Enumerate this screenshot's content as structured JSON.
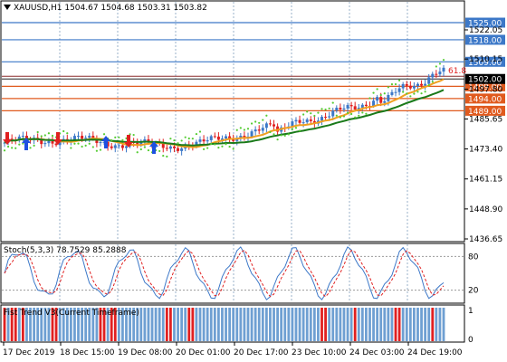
{
  "header": {
    "symbol_line": "XAUUSD,H1  1504.67 1504.68 1503.31 1503.82"
  },
  "price_axis": {
    "ticks": [
      "1522.05",
      "1510.15",
      "1497.80",
      "1485.65",
      "1473.40",
      "1461.15",
      "1448.90",
      "1436.65"
    ],
    "current_price": "1502.00",
    "current_price_color": "#000000"
  },
  "levels": [
    {
      "label": "1525.00",
      "price": 1525.0,
      "color": "#3c78c8"
    },
    {
      "label": "1518.00",
      "price": 1518.0,
      "color": "#3c78c8"
    },
    {
      "label": "1509.00",
      "price": 1509.0,
      "color": "#3c78c8"
    },
    {
      "label": "1499.00",
      "price": 1499.0,
      "color": "#e05a1e"
    },
    {
      "label": "1494.00",
      "price": 1494.0,
      "color": "#e05a1e"
    },
    {
      "label": "1489.00",
      "price": 1489.0,
      "color": "#e05a1e"
    }
  ],
  "fibo_label": "61.8",
  "time_axis": {
    "labels": [
      "17 Dec 2019",
      "18 Dec 15:00",
      "19 Dec 08:00",
      "20 Dec 01:00",
      "20 Dec 17:00",
      "23 Dec 10:00",
      "24 Dec 03:00",
      "24 Dec 19:00"
    ]
  },
  "stoch": {
    "title": "Stoch(5,3,3) 78.7529 85.2888",
    "levels": [
      "80",
      "20"
    ]
  },
  "fisher": {
    "title": "Fist Trend V3(Current Timeframe)",
    "axis_labels": [
      "1",
      "0"
    ]
  },
  "colors": {
    "bull_candle": "#3c78c8",
    "bear_candle": "#e02020",
    "ma_fast": "#f0a020",
    "ma_slow": "#1a7a1a",
    "psar": "#55cc33",
    "stoch_main": "#3c78c8",
    "stoch_signal": "#e02020",
    "grid": "#9ab0c8",
    "buy_arrow": "#1e50e0",
    "sell_arrow": "#e02020"
  }
}
